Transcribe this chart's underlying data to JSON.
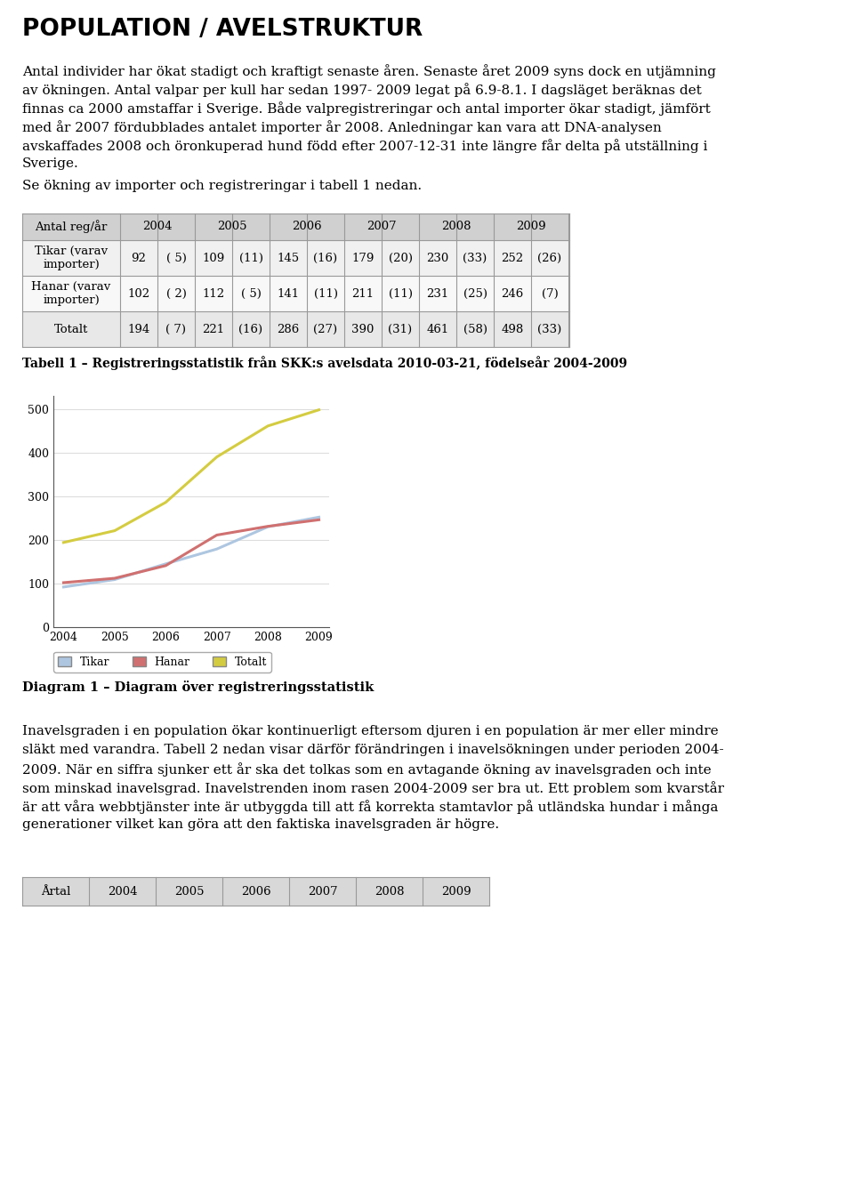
{
  "title": "POPULATION / AVELSTRUKTUR",
  "para1_line1": "Antal individer har ökat stadigt och kraftigt senaste åren. Senaste året 2009 syns dock en utjämning",
  "para1_line2": "av ökningen. Antal valpar per kull har sedan 1997- 2009 legat på 6.9-8.1. I dagsläget beräknas det",
  "para1_line3": "finnas ca 2000 amstaffar i Sverige. Både valpregistreringar och antal importer ökar stadigt, jämfört",
  "para1_line4": "med år 2007 fördubblades antalet importer år 2008. Anledningar kan vara att DNA-analysen",
  "para1_line5": "avskaffades 2008 och öronkuperad hund född efter 2007-12-31 inte längre får delta på utställning i",
  "para1_line6": "Sverige.",
  "para1b": "Se ökning av importer och registreringar i tabell 1 nedan.",
  "table1_years": [
    "2004",
    "2005",
    "2006",
    "2007",
    "2008",
    "2009"
  ],
  "table1_header_label": "Antal reg/år",
  "table1_rows": [
    {
      "label": "Tikar (varav\nimporter)",
      "values": [
        "92",
        "109",
        "145",
        "179",
        "230",
        "252"
      ],
      "imports": [
        "( 5)",
        "(11)",
        "(16)",
        "(20)",
        "(33)",
        "(26)"
      ]
    },
    {
      "label": "Hanar (varav\nimporter)",
      "values": [
        "102",
        "112",
        "141",
        "211",
        "231",
        "246"
      ],
      "imports": [
        "( 2)",
        "( 5)",
        "(11)",
        "(11)",
        "(25)",
        "(7)"
      ]
    },
    {
      "label": "Totalt",
      "values": [
        "194",
        "221",
        "286",
        "390",
        "461",
        "498"
      ],
      "imports": [
        "( 7)",
        "(16)",
        "(27)",
        "(31)",
        "(58)",
        "(33)"
      ]
    }
  ],
  "table1_caption": "Tabell 1 – Registreringsstatistik från SKK:s avelsdata 2010-03-21, födelseår 2004-2009",
  "chart_years": [
    2004,
    2005,
    2006,
    2007,
    2008,
    2009
  ],
  "tikar_values": [
    92,
    109,
    145,
    179,
    230,
    252
  ],
  "hanar_values": [
    102,
    112,
    141,
    211,
    231,
    246
  ],
  "totalt_values": [
    194,
    221,
    286,
    390,
    461,
    498
  ],
  "tikar_color": "#aec6e0",
  "hanar_color": "#d07070",
  "totalt_color": "#d4cc40",
  "chart_ylabel_ticks": [
    0,
    100,
    200,
    300,
    400,
    500
  ],
  "legend_labels": [
    "Tikar",
    "Hanar",
    "Totalt"
  ],
  "diagram_caption": "Diagram 1 – Diagram över registreringsstatistik",
  "para2_line1": "Inavelsgraden i en population ökar kontinuerligt eftersom djuren i en population är mer eller mindre",
  "para2_line2": "släkt med varandra. Tabell 2 nedan visar därför förändringen i inavelsökningen under perioden 2004-",
  "para2_line3": "2009. När en siffra sjunker ett år ska det tolkas som en avtagande ökning av inavelsgraden och inte",
  "para2_line4": "som minskad inavelsgrad. Inavelstrenden inom rasen 2004-2009 ser bra ut. Ett problem som kvarstår",
  "para2_line5": "är att våra webbtjänster inte är utbyggda till att få korrekta stamtavlor på utländska hundar i många",
  "para2_line6": "generationer vilket kan göra att den faktiska inavelsgraden är högre.",
  "table2_header": [
    "Årtal",
    "2004",
    "2005",
    "2006",
    "2007",
    "2008",
    "2009"
  ],
  "bg_color": "#ffffff"
}
